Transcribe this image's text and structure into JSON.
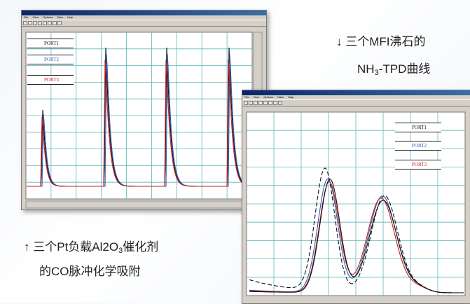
{
  "windows": {
    "co_pulse": {
      "menu": [
        "File",
        "View",
        "Options",
        "Data",
        "Help"
      ],
      "ports": [
        {
          "label": "PORT1",
          "color": "#111111"
        },
        {
          "label": "PORT2",
          "color": "#2d5fb8"
        },
        {
          "label": "PORT3",
          "color": "#d01a1a"
        }
      ]
    },
    "nh3_tpd": {
      "menu": [
        "File",
        "View",
        "Options",
        "Data",
        "Help"
      ],
      "ports": [
        {
          "label": "PORT1",
          "color": "#111111"
        },
        {
          "label": "PORT2",
          "color": "#2d5fb8"
        },
        {
          "label": "PORT3",
          "color": "#d01a1a"
        }
      ]
    }
  },
  "captions": {
    "mfi_line1_arrow": "↓",
    "mfi_line1_text": "三个MFI沸石的",
    "mfi_line2_pre": "NH",
    "mfi_line2_sub": "3",
    "mfi_line2_post": "-TPD曲线",
    "pt_line1_arrow": "↑",
    "pt_line1_pre": "三个Pt负载Al2O",
    "pt_line1_sub": "3",
    "pt_line1_post": "催化剂",
    "pt_line2": "的CO脉冲化学吸附"
  },
  "colors": {
    "grid": "#5db8b8",
    "plot_bg": "#ffffff"
  }
}
